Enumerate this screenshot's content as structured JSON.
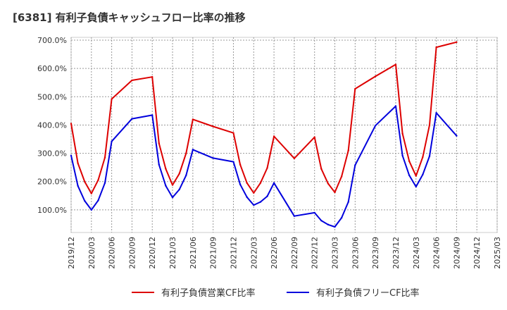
{
  "title": "[6381]  有利子負債キャッシュフロー比率の推移",
  "chart_data": {
    "type": "line",
    "title": "[6381]  有利子負債キャッシュフロー比率の推移",
    "xlabel": "",
    "ylabel": "",
    "ylim": [
      20,
      710
    ],
    "y_ticks": [
      "100.0%",
      "200.0%",
      "300.0%",
      "400.0%",
      "500.0%",
      "600.0%",
      "700.0%"
    ],
    "y_tick_values": [
      100,
      200,
      300,
      400,
      500,
      600,
      700
    ],
    "x_ticks": [
      "2019/12",
      "2020/03",
      "2020/06",
      "2020/09",
      "2020/12",
      "2021/03",
      "2021/06",
      "2021/09",
      "2021/12",
      "2022/03",
      "2022/06",
      "2022/09",
      "2022/12",
      "2023/03",
      "2023/06",
      "2023/09",
      "2023/12",
      "2024/03",
      "2024/06",
      "2024/09",
      "2024/12",
      "2025/03"
    ],
    "grid": true,
    "legend_position": "bottom",
    "series": [
      {
        "name": "有利子負債営業CF比率",
        "color": "#dd0000",
        "x": [
          "2019/12",
          "2020/01",
          "2020/02",
          "2020/03",
          "2020/04",
          "2020/05",
          "2020/06",
          "2020/09",
          "2020/12",
          "2021/01",
          "2021/02",
          "2021/03",
          "2021/04",
          "2021/05",
          "2021/06",
          "2021/09",
          "2021/12",
          "2022/01",
          "2022/02",
          "2022/03",
          "2022/04",
          "2022/05",
          "2022/06",
          "2022/09",
          "2022/12",
          "2023/01",
          "2023/02",
          "2023/03",
          "2023/04",
          "2023/05",
          "2023/06",
          "2023/09",
          "2023/12",
          "2024/01",
          "2024/02",
          "2024/03",
          "2024/04",
          "2024/05",
          "2024/06",
          "2024/09"
        ],
        "y": [
          405,
          265,
          200,
          158,
          205,
          285,
          492,
          558,
          570,
          335,
          245,
          188,
          228,
          300,
          420,
          395,
          372,
          260,
          195,
          160,
          195,
          248,
          360,
          282,
          357,
          245,
          193,
          162,
          218,
          310,
          528,
          572,
          614,
          370,
          272,
          220,
          287,
          400,
          675,
          693
        ]
      },
      {
        "name": "有利子負債フリーCF比率",
        "color": "#0000dd",
        "x": [
          "2019/12",
          "2020/01",
          "2020/02",
          "2020/03",
          "2020/04",
          "2020/05",
          "2020/06",
          "2020/09",
          "2020/12",
          "2021/01",
          "2021/02",
          "2021/03",
          "2021/04",
          "2021/05",
          "2021/06",
          "2021/09",
          "2021/12",
          "2022/01",
          "2022/02",
          "2022/03",
          "2022/04",
          "2022/05",
          "2022/06",
          "2022/09",
          "2022/12",
          "2023/01",
          "2023/02",
          "2023/03",
          "2023/04",
          "2023/05",
          "2023/06",
          "2023/09",
          "2023/12",
          "2024/01",
          "2024/02",
          "2024/03",
          "2024/04",
          "2024/05",
          "2024/06",
          "2024/09"
        ],
        "y": [
          292,
          185,
          132,
          100,
          133,
          195,
          342,
          422,
          435,
          260,
          185,
          144,
          172,
          222,
          313,
          283,
          270,
          190,
          145,
          117,
          128,
          148,
          195,
          78,
          90,
          62,
          48,
          40,
          72,
          128,
          258,
          398,
          467,
          292,
          222,
          182,
          225,
          290,
          443,
          362
        ]
      }
    ]
  }
}
